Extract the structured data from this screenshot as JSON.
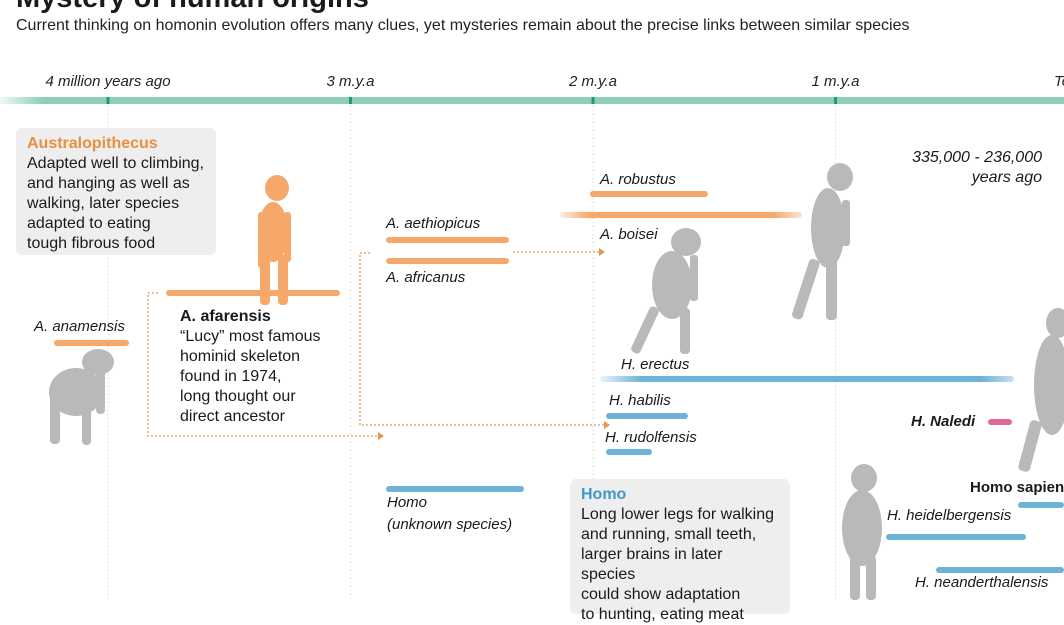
{
  "title": "Mystery of human origins",
  "subtitle": "Current thinking on homonin evolution offers many clues, yet mysteries remain about the precise links between similar species",
  "colors": {
    "australopithecus": "#f5a86a",
    "homo": "#6fb2d8",
    "naledi": "#e06a97",
    "timeline": "#8fcfba",
    "timeline_tick": "#1f9b70",
    "figure_ape": "#f5a86a",
    "figure_grey": "#b9b9b9",
    "card_bg": "#eeeeee"
  },
  "axis": {
    "unit": "million years ago",
    "direction": "decreasing to the right",
    "ticks": [
      {
        "value": 4,
        "label": "4 million years ago"
      },
      {
        "value": 3,
        "label": "3 m.y.a"
      },
      {
        "value": 2,
        "label": "2 m.y.a"
      },
      {
        "value": 1,
        "label": "1 m.y.a"
      },
      {
        "value": 0,
        "label": "To"
      }
    ]
  },
  "chart_data": {
    "type": "bar",
    "orientation": "horizontal timeline (Gantt)",
    "x_unit": "million years ago",
    "xlim": [
      4.4,
      -0.1
    ],
    "series": [
      {
        "name": "A. anamensis",
        "group": "Australopithecus",
        "start": 4.2,
        "end": 3.9
      },
      {
        "name": "A. afarensis",
        "group": "Australopithecus",
        "start": 3.8,
        "end": 2.9
      },
      {
        "name": "A. aethiopicus",
        "group": "Australopithecus",
        "start": 2.7,
        "end": 2.3
      },
      {
        "name": "A. africanus",
        "group": "Australopithecus",
        "start": 2.7,
        "end": 2.3
      },
      {
        "name": "A. robustus",
        "group": "Australopithecus",
        "start": 2.0,
        "end": 1.5
      },
      {
        "name": "A. boisei",
        "group": "Australopithecus",
        "start": 2.2,
        "end": 1.1
      },
      {
        "name": "Homo (unknown species)",
        "group": "Homo",
        "start": 2.8,
        "end": 2.3
      },
      {
        "name": "H. habilis",
        "group": "Homo",
        "start": 2.0,
        "end": 1.6
      },
      {
        "name": "H. rudolfensis",
        "group": "Homo",
        "start": 2.0,
        "end": 1.8
      },
      {
        "name": "H. erectus",
        "group": "Homo",
        "start": 1.9,
        "end": 0.1
      },
      {
        "name": "H. Naledi",
        "group": "Homo",
        "start": 0.335,
        "end": 0.236
      },
      {
        "name": "H. heidelbergensis",
        "group": "Homo",
        "start": 0.8,
        "end": 0.2
      },
      {
        "name": "Homo sapiens",
        "group": "Homo",
        "start": 0.3,
        "end": 0.0
      },
      {
        "name": "H. neanderthalensis",
        "group": "Homo",
        "start": 0.45,
        "end": 0.04
      }
    ],
    "annotations": [
      {
        "text": "335,000 - 236,000 years ago",
        "refers_to": "H. Naledi"
      }
    ]
  },
  "cards": {
    "australopithecus": {
      "title": "Australopithecus",
      "lines": [
        "Adapted well to climbing,",
        "and hanging as well as",
        "walking, later species",
        "adapted to eating",
        "tough fibrous food"
      ]
    },
    "afarensis": {
      "title": "A. afarensis",
      "lines": [
        "“Lucy” most famous",
        "hominid skeleton",
        "found in 1974,",
        "long thought our",
        "direct ancestor"
      ]
    },
    "homo": {
      "title": "Homo",
      "lines": [
        "Long lower legs for walking",
        "and running, small teeth,",
        "larger brains in later species",
        "could show adaptation",
        "to hunting, eating meat"
      ]
    }
  },
  "labels": {
    "anamensis": "A. anamensis",
    "aethiopicus": "A. aethiopicus",
    "africanus": "A. africanus",
    "robustus": "A. robustus",
    "boisei": "A. boisei",
    "homo_unknown_1": "Homo",
    "homo_unknown_2": "(unknown species)",
    "erectus": "H. erectus",
    "habilis": "H. habilis",
    "rudolfensis": "H. rudolfensis",
    "naledi": "H. Naledi",
    "sapiens": "Homo sapiens",
    "heidelbergensis": "H. heidelbergensis",
    "neanderthalensis": "H. neanderthalensis",
    "naledi_date_1": "335,000  -  236,000",
    "naledi_date_2": "years ago"
  },
  "figures": [
    "anamensis-figure",
    "afarensis-figure",
    "boisei-figure",
    "erectus-figure",
    "homo-woman-figure",
    "sapiens-figure"
  ]
}
